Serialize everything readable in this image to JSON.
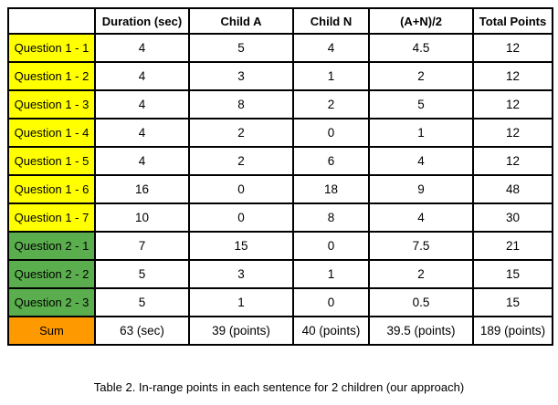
{
  "caption": "Table 2. In-range points in each sentence for 2 children (our approach)",
  "colors": {
    "question1_row_bg": "#FFFF00",
    "question2_row_bg": "#5BAE4E",
    "sum_row_bg": "#FF9900",
    "table_border": "#000000"
  },
  "chart_data": {
    "type": "table",
    "title": "Table 2. In-range points in each sentence for 2 children (our approach)",
    "columns": [
      "",
      "Duration (sec)",
      "Child A",
      "Child N",
      "(A+N)/2",
      "Total Points"
    ],
    "rows": [
      {
        "label": "Question 1 - 1",
        "group": "q1",
        "values": [
          "4",
          "5",
          "4",
          "4.5",
          "12"
        ]
      },
      {
        "label": "Question 1 - 2",
        "group": "q1",
        "values": [
          "4",
          "3",
          "1",
          "2",
          "12"
        ]
      },
      {
        "label": "Question 1 - 3",
        "group": "q1",
        "values": [
          "4",
          "8",
          "2",
          "5",
          "12"
        ]
      },
      {
        "label": "Question 1 - 4",
        "group": "q1",
        "values": [
          "4",
          "2",
          "0",
          "1",
          "12"
        ]
      },
      {
        "label": "Question 1 - 5",
        "group": "q1",
        "values": [
          "4",
          "2",
          "6",
          "4",
          "12"
        ]
      },
      {
        "label": "Question 1 - 6",
        "group": "q1",
        "values": [
          "16",
          "0",
          "18",
          "9",
          "48"
        ]
      },
      {
        "label": "Question 1 - 7",
        "group": "q1",
        "values": [
          "10",
          "0",
          "8",
          "4",
          "30"
        ]
      },
      {
        "label": "Question 2 - 1",
        "group": "q2",
        "values": [
          "7",
          "15",
          "0",
          "7.5",
          "21"
        ]
      },
      {
        "label": "Question 2 - 2",
        "group": "q2",
        "values": [
          "5",
          "3",
          "1",
          "2",
          "15"
        ]
      },
      {
        "label": "Question 2 - 3",
        "group": "q2",
        "values": [
          "5",
          "1",
          "0",
          "0.5",
          "15"
        ]
      },
      {
        "label": "Sum",
        "group": "sum",
        "values": [
          "63 (sec)",
          "39 (points)",
          "40 (points)",
          "39.5 (points)",
          "189 (points)"
        ]
      }
    ]
  }
}
